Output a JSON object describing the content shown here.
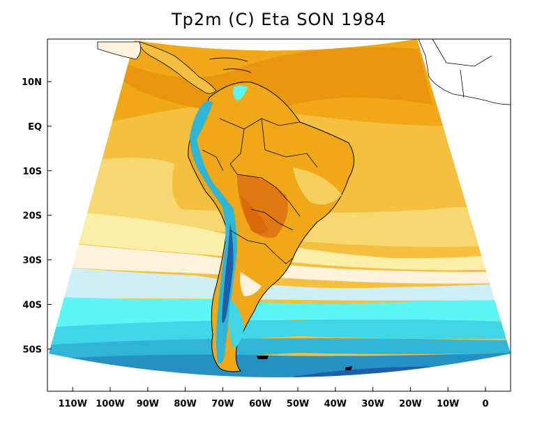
{
  "title": "Tp2m (C) Eta SON 1984",
  "y_ticks": [
    {
      "label": "10N",
      "lat": 10
    },
    {
      "label": "EQ",
      "lat": 0
    },
    {
      "label": "10S",
      "lat": -10
    },
    {
      "label": "20S",
      "lat": -20
    },
    {
      "label": "30S",
      "lat": -30
    },
    {
      "label": "40S",
      "lat": -40
    },
    {
      "label": "50S",
      "lat": -50
    }
  ],
  "x_ticks": [
    {
      "label": "110W",
      "lon": -110
    },
    {
      "label": "100W",
      "lon": -100
    },
    {
      "label": "90W",
      "lon": -90
    },
    {
      "label": "80W",
      "lon": -80
    },
    {
      "label": "70W",
      "lon": -70
    },
    {
      "label": "60W",
      "lon": -60
    },
    {
      "label": "50W",
      "lon": -50
    },
    {
      "label": "40W",
      "lon": -40
    },
    {
      "label": "30W",
      "lon": -30
    },
    {
      "label": "20W",
      "lon": -20
    },
    {
      "label": "10W",
      "lon": -10
    },
    {
      "label": "0",
      "lon": 0
    }
  ],
  "colors": {
    "warmest": "#e8960c",
    "warm": "#f0a818",
    "mid_warm": "#f5c040",
    "light_warm": "#f7d870",
    "pale": "#fbefa8",
    "cream": "#fdf3dc",
    "pale_cyan": "#cfeff8",
    "cyan": "#5cf5f8",
    "aqua": "#3fd6e8",
    "teal": "#2fb6d6",
    "blue": "#2590c4",
    "deep_blue": "#1d5fa8",
    "land_hot": "#e07a10",
    "andes_cold": "#2a5fb0",
    "border": "#000000"
  }
}
